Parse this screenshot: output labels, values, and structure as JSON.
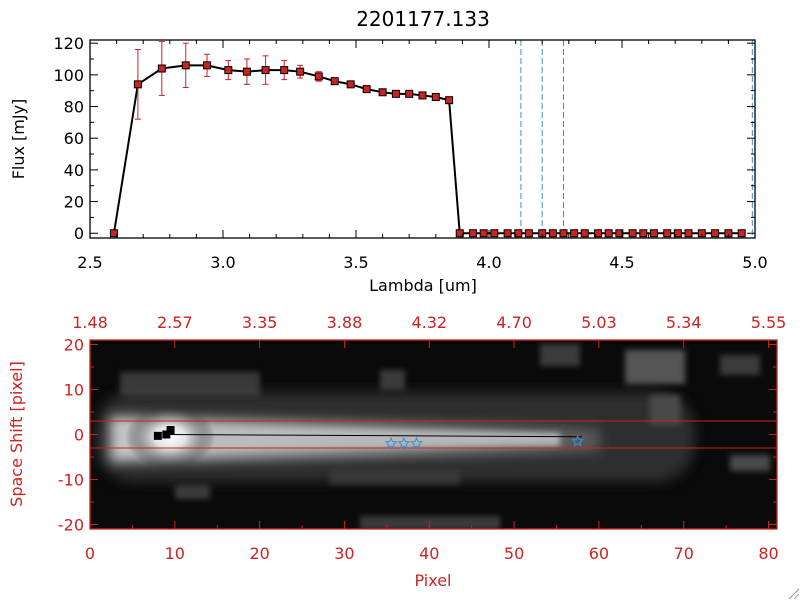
{
  "colors": {
    "accent": "#cc2222",
    "blue": "#3a8fd8",
    "black": "#000000"
  },
  "chart_data": [
    {
      "type": "line",
      "title": "2201177.133",
      "xlabel": "Lambda [um]",
      "ylabel": "Flux [mJy]",
      "xlim": [
        2.5,
        5.0
      ],
      "ylim": [
        -3,
        122
      ],
      "xticks": [
        "2.5",
        "3.0",
        "3.5",
        "4.0",
        "4.5",
        "5.0"
      ],
      "yticks": [
        "0",
        "20",
        "40",
        "60",
        "80",
        "100",
        "120"
      ],
      "xtick_values": [
        2.5,
        3.0,
        3.5,
        4.0,
        4.5,
        5.0
      ],
      "ytick_values": [
        0,
        20,
        40,
        60,
        80,
        100,
        120
      ],
      "x": [
        2.59,
        2.68,
        2.77,
        2.86,
        2.94,
        3.02,
        3.09,
        3.16,
        3.23,
        3.29,
        3.36,
        3.42,
        3.48,
        3.54,
        3.6,
        3.65,
        3.7,
        3.75,
        3.8,
        3.85,
        3.89,
        3.94,
        3.98,
        4.02,
        4.07,
        4.11,
        4.15,
        4.2,
        4.24,
        4.28,
        4.32,
        4.36,
        4.41,
        4.45,
        4.49,
        4.54,
        4.58,
        4.62,
        4.67,
        4.71,
        4.75,
        4.8,
        4.85,
        4.9,
        4.95
      ],
      "y": [
        0,
        94,
        104,
        106,
        106,
        103,
        102,
        103,
        103,
        102,
        99,
        96,
        94,
        91,
        89,
        88,
        88,
        87,
        86,
        84,
        0,
        0,
        0,
        0,
        0,
        0,
        0,
        0,
        0,
        0,
        0,
        0,
        0,
        0,
        0,
        0,
        0,
        0,
        0,
        0,
        0,
        0,
        0,
        0,
        0
      ],
      "yerr": [
        0,
        22,
        17,
        14,
        7,
        6,
        8,
        9,
        6,
        4,
        3,
        2,
        0,
        0,
        0,
        0,
        0,
        0,
        0,
        0,
        0,
        0,
        0,
        0,
        0,
        0,
        0,
        0,
        0,
        0,
        0,
        0,
        0,
        0,
        0,
        0,
        0,
        0,
        0,
        0,
        0,
        0,
        0,
        0,
        0
      ],
      "vlines": [
        4.12,
        4.2,
        4.28,
        4.99
      ],
      "grid": false,
      "line_color": "#000000",
      "marker_color": "#cc2222",
      "errorbar_color": "#cc2222",
      "vline_color": "#3a8fd8"
    },
    {
      "type": "heatmap",
      "xlabel": "Pixel",
      "ylabel": "Space Shift [pixel]",
      "xlim": [
        0,
        81
      ],
      "ylim": [
        -21,
        21
      ],
      "xticks": [
        "0",
        "10",
        "20",
        "30",
        "40",
        "50",
        "60",
        "70",
        "80"
      ],
      "xtick_values": [
        0,
        10,
        20,
        30,
        40,
        50,
        60,
        70,
        80
      ],
      "yticks": [
        "-20",
        "-10",
        "0",
        "10",
        "20"
      ],
      "ytick_values": [
        -20,
        -10,
        0,
        10,
        20
      ],
      "top_axis_label_values": [
        "1.48",
        "2.57",
        "3.35",
        "3.88",
        "4.32",
        "4.70",
        "5.03",
        "5.34",
        "5.55"
      ],
      "top_axis_positions": [
        0,
        10,
        20,
        30,
        40,
        50,
        60,
        70,
        80
      ],
      "hlines": [
        3,
        -3
      ],
      "trace_x": [
        9,
        58
      ],
      "trace_y": [
        0,
        -0.5
      ],
      "marker_points": [
        {
          "x": 8,
          "y": -0.3
        },
        {
          "x": 9,
          "y": 0
        },
        {
          "x": 9.5,
          "y": 1
        }
      ],
      "star_points": [
        {
          "x": 35.5,
          "y": -2
        },
        {
          "x": 37,
          "y": -2
        },
        {
          "x": 38.5,
          "y": -2
        },
        {
          "x": 57.5,
          "y": -1.5
        }
      ],
      "axis_color": "#cc2222",
      "hline_color": "#cc2222",
      "star_color": "#3a8fd8",
      "grid": false
    }
  ]
}
